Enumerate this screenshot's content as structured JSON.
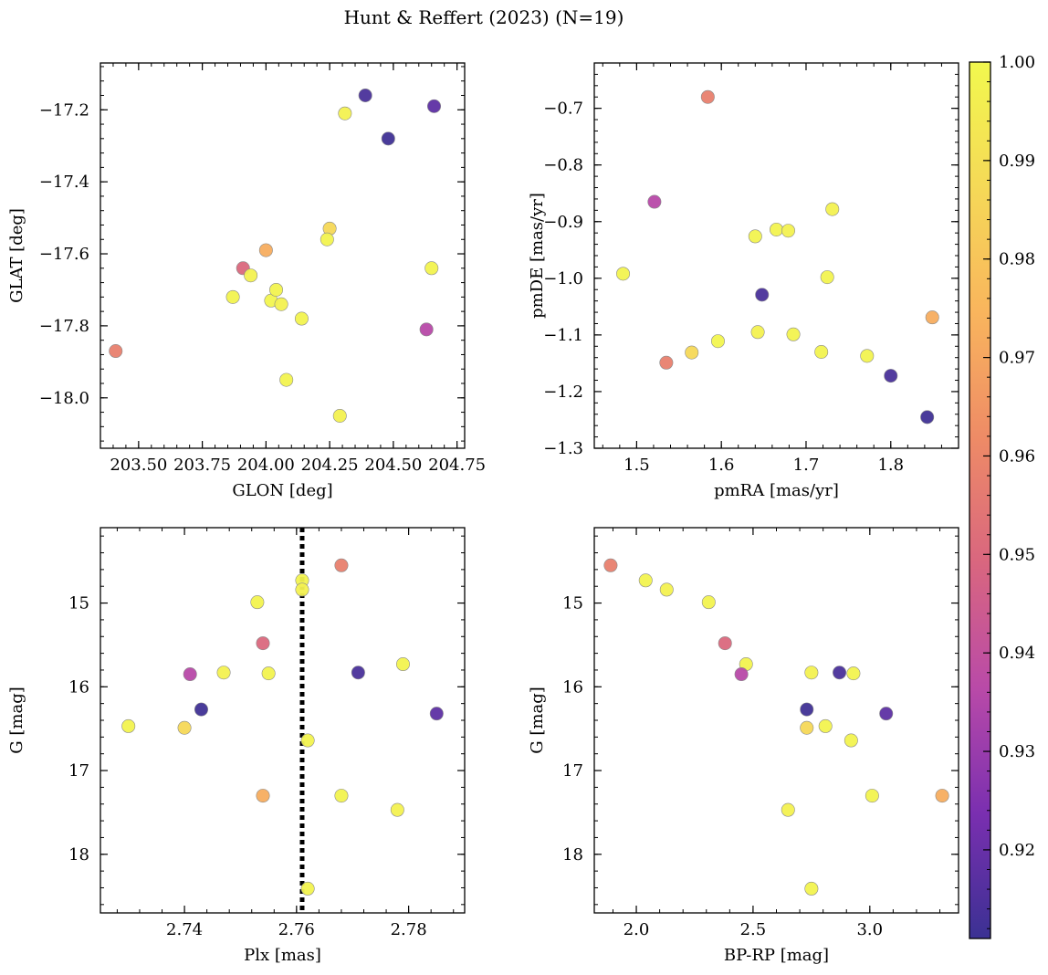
{
  "figure": {
    "title": "Hunt & Reffert (2023) (N=19)"
  },
  "colorbar": {
    "min": 0.911,
    "max": 1.0,
    "ticks": [
      0.92,
      0.93,
      0.94,
      0.95,
      0.96,
      0.97,
      0.98,
      0.99,
      1.0
    ],
    "tick_labels": [
      "0.92",
      "0.93",
      "0.94",
      "0.95",
      "0.96",
      "0.97",
      "0.98",
      "0.99",
      "1.00"
    ],
    "colormap": "plasma-like",
    "stops": [
      "#3b3193",
      "#7a2fb0",
      "#b94aa8",
      "#d9667f",
      "#ee8b66",
      "#f9b55d",
      "#f5d957",
      "#f2f84e"
    ]
  },
  "chart_data": [
    {
      "id": "glon-glat",
      "type": "scatter",
      "xlabel": "GLON [deg]",
      "ylabel": "GLAT [deg]",
      "xlim": [
        203.35,
        204.78
      ],
      "ylim": [
        -18.14,
        -17.07
      ],
      "y_inverted": false,
      "xticks": [
        203.5,
        203.75,
        204.0,
        204.25,
        204.5,
        204.75
      ],
      "xtick_labels": [
        "203.50",
        "203.75",
        "204.00",
        "204.25",
        "204.50",
        "204.75"
      ],
      "yticks": [
        -17.2,
        -17.4,
        -17.6,
        -17.8,
        -18.0
      ],
      "ytick_labels": [
        "−17.2",
        "−17.4",
        "−17.6",
        "−17.8",
        "−18.0"
      ],
      "x": [
        204.39,
        204.66,
        204.31,
        204.48,
        204.25,
        204.24,
        204.0,
        204.65,
        203.91,
        203.94,
        203.87,
        204.02,
        204.04,
        204.06,
        204.14,
        204.63,
        203.41,
        204.08,
        204.29
      ],
      "y": [
        -17.16,
        -17.19,
        -17.21,
        -17.28,
        -17.53,
        -17.56,
        -17.59,
        -17.64,
        -17.64,
        -17.66,
        -17.72,
        -17.73,
        -17.7,
        -17.74,
        -17.78,
        -17.81,
        -17.87,
        -17.95,
        -18.05
      ],
      "c": [
        0.914,
        0.918,
        0.997,
        0.912,
        0.987,
        0.998,
        0.972,
        0.998,
        0.95,
        0.997,
        0.998,
        0.999,
        0.998,
        0.997,
        0.998,
        0.936,
        0.958,
        0.998,
        0.997
      ]
    },
    {
      "id": "pm",
      "type": "scatter",
      "xlabel": "pmRA [mas/yr]",
      "ylabel": "pmDE [mas/yr]",
      "xlim": [
        1.45,
        1.88
      ],
      "ylim": [
        -1.3,
        -0.62
      ],
      "y_inverted": false,
      "xticks": [
        1.5,
        1.6,
        1.7,
        1.8
      ],
      "xtick_labels": [
        "1.5",
        "1.6",
        "1.7",
        "1.8"
      ],
      "yticks": [
        -0.7,
        -0.8,
        -0.9,
        -1.0,
        -1.1,
        -1.2,
        -1.3
      ],
      "ytick_labels": [
        "−0.7",
        "−0.8",
        "−0.9",
        "−1.0",
        "−1.1",
        "−1.2",
        "−1.3"
      ],
      "x": [
        1.584,
        1.521,
        1.731,
        1.665,
        1.679,
        1.64,
        1.484,
        1.725,
        1.648,
        1.849,
        1.643,
        1.685,
        1.596,
        1.565,
        1.718,
        1.772,
        1.535,
        1.8,
        1.843
      ],
      "y": [
        -0.68,
        -0.865,
        -0.878,
        -0.914,
        -0.916,
        -0.926,
        -0.992,
        -0.998,
        -1.029,
        -1.069,
        -1.095,
        -1.099,
        -1.111,
        -1.131,
        -1.13,
        -1.137,
        -1.149,
        -1.172,
        -1.245
      ],
      "c": [
        0.958,
        0.936,
        0.997,
        0.998,
        0.997,
        0.998,
        0.998,
        0.998,
        0.914,
        0.972,
        0.997,
        0.998,
        0.999,
        0.987,
        0.998,
        0.998,
        0.958,
        0.914,
        0.912
      ]
    },
    {
      "id": "plx-g",
      "type": "scatter",
      "xlabel": "Plx [mas]",
      "ylabel": "G [mag]",
      "xlim": [
        2.725,
        2.79
      ],
      "ylim": [
        14.1,
        18.7
      ],
      "y_inverted": true,
      "xticks": [
        2.74,
        2.76,
        2.78
      ],
      "xtick_labels": [
        "2.74",
        "2.76",
        "2.78"
      ],
      "yticks": [
        15,
        16,
        17,
        18
      ],
      "ytick_labels": [
        "15",
        "16",
        "17",
        "18"
      ],
      "vline": {
        "x": 2.761,
        "style": "dotted"
      },
      "x": [
        2.768,
        2.761,
        2.761,
        2.753,
        2.754,
        2.779,
        2.747,
        2.755,
        2.741,
        2.771,
        2.743,
        2.785,
        2.73,
        2.74,
        2.762,
        2.754,
        2.768,
        2.778,
        2.762
      ],
      "y": [
        14.55,
        14.73,
        14.84,
        14.99,
        15.48,
        15.73,
        15.83,
        15.84,
        15.85,
        15.83,
        16.27,
        16.32,
        16.47,
        16.49,
        16.64,
        17.3,
        17.3,
        17.47,
        18.41
      ],
      "c": [
        0.958,
        0.998,
        0.997,
        0.998,
        0.95,
        0.998,
        0.997,
        0.998,
        0.936,
        0.914,
        0.912,
        0.918,
        0.998,
        0.987,
        0.998,
        0.972,
        0.998,
        0.997,
        0.998
      ]
    },
    {
      "id": "color-g",
      "type": "scatter",
      "xlabel": "BP-RP [mag]",
      "ylabel": "G [mag]",
      "xlim": [
        1.82,
        3.38
      ],
      "ylim": [
        14.1,
        18.7
      ],
      "y_inverted": true,
      "xticks": [
        2.0,
        2.5,
        3.0
      ],
      "xtick_labels": [
        "2.0",
        "2.5",
        "3.0"
      ],
      "yticks": [
        15,
        16,
        17,
        18
      ],
      "ytick_labels": [
        "15",
        "16",
        "17",
        "18"
      ],
      "x": [
        1.89,
        2.04,
        2.13,
        2.31,
        2.38,
        2.47,
        2.45,
        2.75,
        2.87,
        2.93,
        2.73,
        3.07,
        2.73,
        2.81,
        2.92,
        3.31,
        3.01,
        2.65,
        2.75
      ],
      "y": [
        14.55,
        14.73,
        14.84,
        14.99,
        15.48,
        15.73,
        15.85,
        15.83,
        15.83,
        15.84,
        16.27,
        16.32,
        16.49,
        16.47,
        16.64,
        17.3,
        17.3,
        17.47,
        18.41
      ],
      "c": [
        0.958,
        0.998,
        0.997,
        0.998,
        0.95,
        0.998,
        0.936,
        0.997,
        0.914,
        0.998,
        0.912,
        0.918,
        0.987,
        0.998,
        0.998,
        0.972,
        0.998,
        0.997,
        0.998
      ]
    }
  ]
}
